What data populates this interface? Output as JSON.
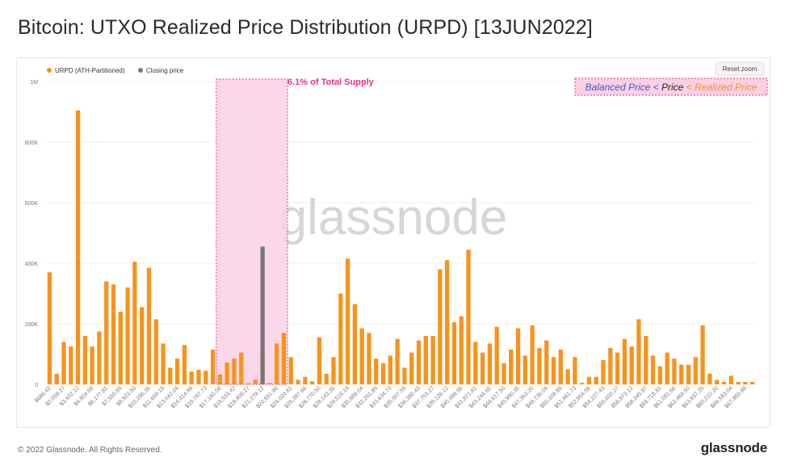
{
  "page": {
    "title": "Bitcoin: UTXO Realized Price Distribution (URPD) [13JUN2022]",
    "copyright": "© 2022 Glassnode. All Rights Reserved.",
    "brand": "glassnode",
    "watermark": "glassnode"
  },
  "toolbar": {
    "reset_zoom_label": "Reset zoom"
  },
  "annotations": {
    "supply_label": "6.1% of Total Supply",
    "condition_parts": [
      "Balanced Price < ",
      "Price",
      " < Realized Price"
    ],
    "colors": {
      "highlight_fill": "#fbd0e4",
      "highlight_border": "#e8358c",
      "supply_text": "#e8358c",
      "balanced": "#3b5bdb",
      "price": "#222222",
      "realized": "#f7931a"
    }
  },
  "chart_data": {
    "type": "bar",
    "legend_position": "top-left",
    "grid": true,
    "ylim": [
      0,
      1000000
    ],
    "y_ticks": [
      {
        "value": 0,
        "label": "0"
      },
      {
        "value": 200000,
        "label": "200K"
      },
      {
        "value": 400000,
        "label": "400K"
      },
      {
        "value": 600000,
        "label": "600K"
      },
      {
        "value": 800000,
        "label": "800K"
      },
      {
        "value": 1000000,
        "label": "1M"
      }
    ],
    "x_tick_labels": [
      "$686.42",
      "$2,059.27",
      "$3,432.12",
      "$4,804.98",
      "$6,177.81",
      "$7,550.65",
      "$8,923.50",
      "$10,296.35",
      "$11,669.19",
      "$13,042.04",
      "$14,414.89",
      "$15,787.73",
      "$17,160.58",
      "$18,533.42",
      "$19,906.27",
      "$21,279.12",
      "$22,651.96",
      "$24,024.81",
      "$25,397.66",
      "$26,770.50",
      "$28,143.35",
      "$29,516.19",
      "$30,889.04",
      "$32,261.89",
      "$33,634.73",
      "$35,007.58",
      "$36,380.43",
      "$37,753.27",
      "$39,126.12",
      "$40,498.96",
      "$41,871.81",
      "$43,244.66",
      "$44,617.50",
      "$45,990.35",
      "$47,363.20",
      "$48,736.04",
      "$50,108.89",
      "$51,481.73",
      "$52,854.58",
      "$54,227.43",
      "$55,600.27",
      "$56,973.12",
      "$58,345.97",
      "$59,718.81",
      "$61,091.66",
      "$62,464.50",
      "$63,837.35",
      "$65,210.20",
      "$66,583.04",
      "$67,955.89"
    ],
    "series": [
      {
        "name": "URPD (ATH-Partitioned)",
        "color": "#f7931a",
        "values": [
          370000,
          35000,
          140000,
          125000,
          905000,
          160000,
          125000,
          175000,
          340000,
          330000,
          240000,
          320000,
          405000,
          255000,
          385000,
          215000,
          135000,
          55000,
          85000,
          130000,
          42000,
          48000,
          45000,
          115000,
          33000,
          72000,
          85000,
          105000,
          4000,
          15000,
          105000,
          5000,
          135000,
          170000,
          90000,
          15000,
          25000,
          10000,
          155000,
          35000,
          90000,
          300000,
          415000,
          265000,
          185000,
          170000,
          85000,
          70000,
          95000,
          150000,
          55000,
          105000,
          145000,
          160000,
          160000,
          380000,
          410000,
          205000,
          225000,
          445000,
          140000,
          105000,
          135000,
          190000,
          70000,
          115000,
          185000,
          95000,
          195000,
          120000,
          145000,
          90000,
          115000,
          50000,
          90000,
          5000,
          25000,
          25000,
          80000,
          120000,
          105000,
          150000,
          125000,
          215000,
          160000,
          95000,
          60000,
          105000,
          85000,
          65000,
          65000,
          90000,
          195000,
          35000,
          15000,
          8000,
          28000,
          8000,
          8000,
          8000
        ]
      },
      {
        "name": "Closing price",
        "color": "#777777",
        "bar_index": 30,
        "value": 455000
      }
    ],
    "highlight_range": {
      "start_index": 24,
      "end_index": 33
    }
  }
}
